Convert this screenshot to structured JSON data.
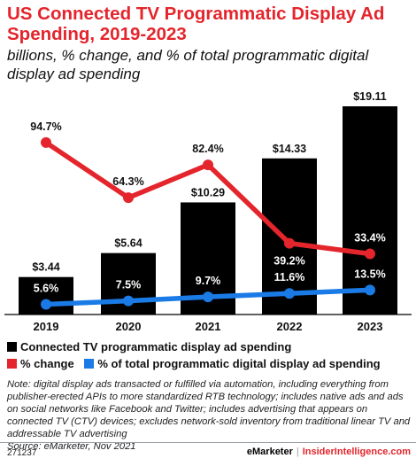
{
  "title": "US Connected TV Programmatic Display Ad Spending, 2019-2023",
  "subtitle": "billions, % change, and % of total programmatic digital display ad spending",
  "chart_data": {
    "type": "bar",
    "categories": [
      "2019",
      "2020",
      "2021",
      "2022",
      "2023"
    ],
    "series": [
      {
        "name": "Connected TV programmatic display ad spending",
        "type": "bar",
        "color": "#000000",
        "values": [
          3.44,
          5.64,
          10.29,
          14.33,
          19.11
        ],
        "labels": [
          "$3.44",
          "$5.64",
          "$10.29",
          "$14.33",
          "$19.11"
        ]
      },
      {
        "name": "% change",
        "type": "line",
        "color": "#e4252c",
        "values": [
          94.7,
          64.3,
          82.4,
          39.2,
          33.4
        ],
        "labels": [
          "94.7%",
          "64.3%",
          "82.4%",
          "39.2%",
          "33.4%"
        ]
      },
      {
        "name": "% of total programmatic digital display ad spending",
        "type": "line",
        "color": "#1a7be6",
        "values": [
          5.6,
          7.5,
          9.7,
          11.6,
          13.5
        ],
        "labels": [
          "5.6%",
          "7.5%",
          "9.7%",
          "11.6%",
          "13.5%"
        ]
      }
    ],
    "bar_ylim": [
      0,
      20
    ],
    "line_ylim": [
      0,
      100
    ],
    "grid": false
  },
  "legend": {
    "bar": "Connected TV programmatic display ad spending",
    "change": "% change",
    "share": "% of total programmatic digital display ad spending"
  },
  "note": "Note: digital display ads transacted or fulfilled via automation, including everything from publisher-erected APIs to more standardized RTB technology; includes native ads and ads on social networks like Facebook and Twitter; includes advertising that appears on connected TV (CTV) devices; excludes network-sold inventory from traditional linear TV and addressable TV advertising",
  "source": "Source: eMarketer, Nov 2021",
  "footer": {
    "id": "271237",
    "brand1": "eMarketer",
    "separator": "|",
    "brand2": "InsiderIntelligence.com"
  }
}
